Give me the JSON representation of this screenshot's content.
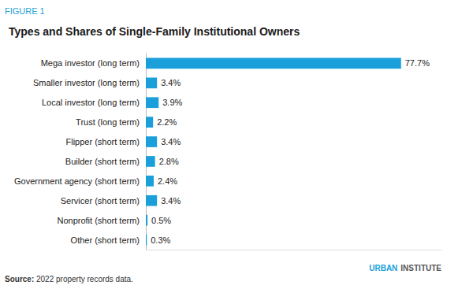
{
  "chart_data": {
    "type": "bar",
    "orientation": "horizontal",
    "title": "Types and Shares of Single-Family Institutional Owners",
    "annotations": [
      "FIGURE 1",
      "Source:",
      " 2022 property records data.",
      "URBAN",
      "INSTITUTE"
    ],
    "categories": [
      "Other (short term)",
      "Nonprofit (short term)",
      "Servicer (short term)",
      "Government agency (short term)",
      "Builder (short term)",
      "Flipper (short term)",
      "Trust (long term)",
      "Local investor (long term)",
      "Smaller investor (long term)",
      "Mega investor (long term)"
    ],
    "values": [
      0.3,
      0.5,
      3.4,
      2.4,
      2.8,
      3.4,
      2.2,
      3.9,
      3.4,
      77.7
    ],
    "value_labels": [
      "0.3%",
      "0.5%",
      "3.4%",
      "2.4%",
      "2.8%",
      "3.4%",
      "2.2%",
      "3.9%",
      "3.4%",
      "77.7%"
    ],
    "data_labels": true,
    "color": "#1a9fda",
    "xlim": [
      0,
      90
    ],
    "tick_labels": "y",
    "grid": false
  }
}
